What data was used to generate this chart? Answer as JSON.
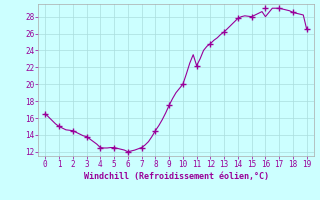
{
  "x_dense": [
    0,
    0.25,
    0.5,
    0.75,
    1,
    1.25,
    1.5,
    1.75,
    2,
    2.25,
    2.5,
    2.75,
    3,
    3.25,
    3.5,
    3.75,
    4,
    4.25,
    4.5,
    4.75,
    5,
    5.25,
    5.5,
    5.75,
    6,
    6.25,
    6.5,
    6.75,
    7,
    7.25,
    7.5,
    7.75,
    8,
    8.25,
    8.5,
    8.75,
    9,
    9.25,
    9.5,
    9.75,
    10,
    10.25,
    10.5,
    10.75,
    11,
    11.25,
    11.5,
    11.75,
    12,
    12.25,
    12.5,
    12.75,
    13,
    13.25,
    13.5,
    13.75,
    14,
    14.25,
    14.5,
    14.75,
    15,
    15.25,
    15.5,
    15.75,
    16,
    16.25,
    16.5,
    16.75,
    17,
    17.25,
    17.5,
    17.75,
    18,
    18.25,
    18.5,
    18.75,
    19
  ],
  "y_dense": [
    16.5,
    16.1,
    15.7,
    15.3,
    15.0,
    14.8,
    14.6,
    14.55,
    14.5,
    14.3,
    14.1,
    13.9,
    13.8,
    13.5,
    13.2,
    12.9,
    12.5,
    12.45,
    12.45,
    12.5,
    12.5,
    12.4,
    12.3,
    12.2,
    12.0,
    12.1,
    12.2,
    12.35,
    12.5,
    12.8,
    13.2,
    13.8,
    14.5,
    15.1,
    15.8,
    16.6,
    17.5,
    18.3,
    19.0,
    19.5,
    20.0,
    21.2,
    22.5,
    23.5,
    22.2,
    23.0,
    24.0,
    24.5,
    24.8,
    25.2,
    25.5,
    25.9,
    26.2,
    26.6,
    27.0,
    27.4,
    27.8,
    28.0,
    28.1,
    28.05,
    28.0,
    28.2,
    28.4,
    28.6,
    28.0,
    28.5,
    29.0,
    29.0,
    29.0,
    28.9,
    28.8,
    28.7,
    28.5,
    28.4,
    28.3,
    28.2,
    26.5
  ],
  "markers_x": [
    0,
    1,
    2,
    3,
    4,
    5,
    6,
    7,
    8,
    9,
    10,
    11,
    12,
    13,
    14,
    15,
    16,
    17,
    18,
    19
  ],
  "markers_y": [
    16.5,
    15.0,
    14.5,
    13.8,
    12.5,
    12.5,
    12.0,
    12.5,
    14.5,
    17.5,
    20.0,
    22.2,
    24.8,
    26.2,
    27.8,
    28.0,
    29.0,
    29.0,
    28.5,
    26.5
  ],
  "xlabel": "Windchill (Refroidissement éolien,°C)",
  "ylim": [
    11.5,
    29.5
  ],
  "xlim": [
    -0.5,
    19.5
  ],
  "yticks": [
    12,
    14,
    16,
    18,
    20,
    22,
    24,
    26,
    28
  ],
  "xticks": [
    0,
    1,
    2,
    3,
    4,
    5,
    6,
    7,
    8,
    9,
    10,
    11,
    12,
    13,
    14,
    15,
    16,
    17,
    18,
    19
  ],
  "line_color": "#990099",
  "marker_color": "#990099",
  "bg_color": "#ccffff",
  "grid_color": "#aadddd",
  "axis_color": "#aaaaaa",
  "tick_color": "#990099",
  "xlabel_color": "#990099"
}
